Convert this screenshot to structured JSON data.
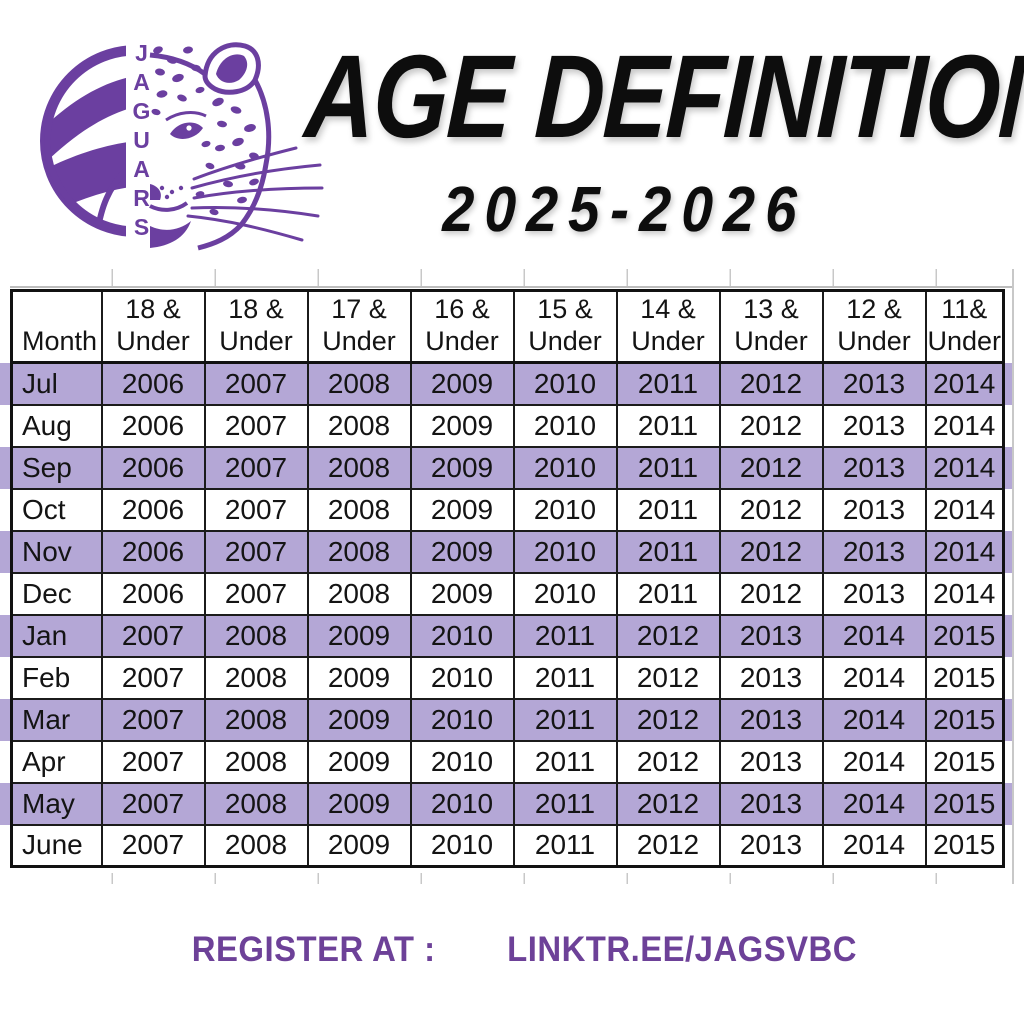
{
  "logo": {
    "team_name": "JAGUARS",
    "volleyball_icon": "volleyball-half",
    "jaguar_icon": "jaguar-half-face"
  },
  "header": {
    "title": "AGE DEFINITION",
    "season": "2025-2026"
  },
  "table": {
    "columns": [
      "Month",
      "18 &\nUnder",
      "18 &\nUnder",
      "17 &\nUnder",
      "16 &\nUnder",
      "15 &\nUnder",
      "14 &\nUnder",
      "13 &\nUnder",
      "12 &\nUnder",
      "11&\nUnder"
    ],
    "rows": [
      {
        "month": "Jul",
        "values": [
          2006,
          2007,
          2008,
          2009,
          2010,
          2011,
          2012,
          2013,
          2014
        ],
        "highlighted": true
      },
      {
        "month": "Aug",
        "values": [
          2006,
          2007,
          2008,
          2009,
          2010,
          2011,
          2012,
          2013,
          2014
        ],
        "highlighted": false
      },
      {
        "month": "Sep",
        "values": [
          2006,
          2007,
          2008,
          2009,
          2010,
          2011,
          2012,
          2013,
          2014
        ],
        "highlighted": true
      },
      {
        "month": "Oct",
        "values": [
          2006,
          2007,
          2008,
          2009,
          2010,
          2011,
          2012,
          2013,
          2014
        ],
        "highlighted": false
      },
      {
        "month": "Nov",
        "values": [
          2006,
          2007,
          2008,
          2009,
          2010,
          2011,
          2012,
          2013,
          2014
        ],
        "highlighted": true
      },
      {
        "month": "Dec",
        "values": [
          2006,
          2007,
          2008,
          2009,
          2010,
          2011,
          2012,
          2013,
          2014
        ],
        "highlighted": false
      },
      {
        "month": "Jan",
        "values": [
          2007,
          2008,
          2009,
          2010,
          2011,
          2012,
          2013,
          2014,
          2015
        ],
        "highlighted": true
      },
      {
        "month": "Feb",
        "values": [
          2007,
          2008,
          2009,
          2010,
          2011,
          2012,
          2013,
          2014,
          2015
        ],
        "highlighted": false
      },
      {
        "month": "Mar",
        "values": [
          2007,
          2008,
          2009,
          2010,
          2011,
          2012,
          2013,
          2014,
          2015
        ],
        "highlighted": true
      },
      {
        "month": "Apr",
        "values": [
          2007,
          2008,
          2009,
          2010,
          2011,
          2012,
          2013,
          2014,
          2015
        ],
        "highlighted": false
      },
      {
        "month": "May",
        "values": [
          2007,
          2008,
          2009,
          2010,
          2011,
          2012,
          2013,
          2014,
          2015
        ],
        "highlighted": true
      },
      {
        "month": "June",
        "values": [
          2007,
          2008,
          2009,
          2010,
          2011,
          2012,
          2013,
          2014,
          2015
        ],
        "highlighted": false
      }
    ]
  },
  "footer": {
    "register_label": "REGISTER AT :",
    "register_link": "LINKTR.EE/JAGSVBC"
  },
  "colors": {
    "accent_purple": "#6B3FA0",
    "row_band_purple": "#B4A7D6",
    "footer_purple": "#6D4198",
    "title_black": "#0D0D0D",
    "table_border": "#1B1B1B",
    "gridline_gray": "#C8C8C8"
  }
}
